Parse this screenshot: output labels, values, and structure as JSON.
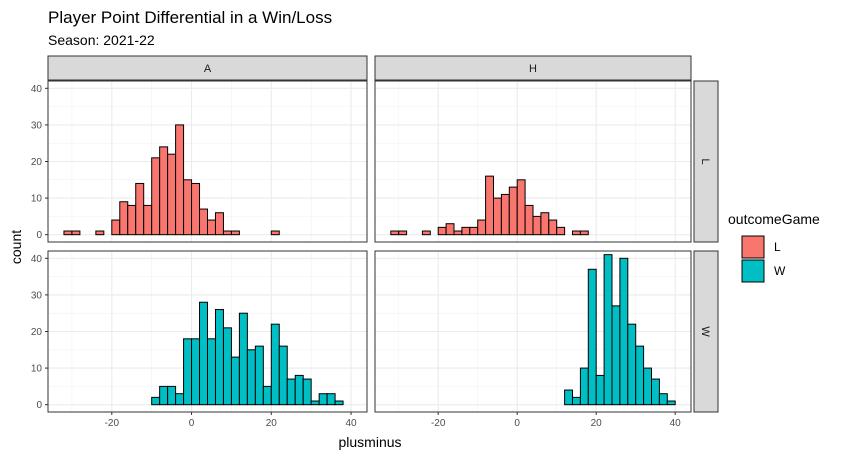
{
  "chart_data": {
    "type": "bar",
    "title": "Player Point Differential in a Win/Loss",
    "subtitle": "Season: 2021-22",
    "xlabel": "plusminus",
    "ylabel": "count",
    "xlim": [
      -36,
      44
    ],
    "ylim": [
      -2,
      42
    ],
    "x_ticks": [
      -20,
      0,
      20,
      40
    ],
    "y_ticks": [
      0,
      10,
      20,
      30,
      40
    ],
    "x_tick_labels": [
      "-20",
      "0",
      "20",
      "40"
    ],
    "y_tick_labels": [
      "0",
      "10",
      "20",
      "30",
      "40"
    ],
    "bin_centers": [
      -33,
      -31,
      -29,
      -27,
      -25,
      -23,
      -21,
      -19,
      -17,
      -15,
      -13,
      -11,
      -9,
      -7,
      -5,
      -3,
      -1,
      1,
      3,
      5,
      7,
      9,
      11,
      13,
      15,
      17,
      19,
      21,
      23,
      25,
      27,
      29,
      31,
      33,
      35,
      37,
      39,
      41
    ],
    "bin_width": 2,
    "grid": true,
    "legend": {
      "title": "outcomeGame",
      "placement": "right",
      "items": [
        {
          "label": "L",
          "color": "#F8766D"
        },
        {
          "label": "W",
          "color": "#00BFC4"
        }
      ]
    },
    "facet_cols": [
      "A",
      "H"
    ],
    "facet_rows": [
      "L",
      "W"
    ],
    "panels": [
      {
        "col": "A",
        "row": "L",
        "color": "#F8766D",
        "values": [
          0,
          1,
          1,
          0,
          0,
          1,
          0,
          4,
          9,
          8,
          14,
          8,
          21,
          24,
          22,
          30,
          15,
          14,
          7,
          4,
          6,
          1,
          1,
          0,
          0,
          0,
          0,
          1,
          0,
          0,
          0,
          0,
          0,
          0,
          0,
          0,
          0,
          0
        ]
      },
      {
        "col": "H",
        "row": "L",
        "color": "#F8766D",
        "values": [
          0,
          1,
          1,
          0,
          0,
          1,
          0,
          2,
          3,
          1,
          2,
          2,
          4,
          16,
          10,
          11,
          13,
          15,
          8,
          5,
          6,
          4,
          2,
          0,
          1,
          1,
          0,
          0,
          0,
          0,
          0,
          0,
          0,
          0,
          0,
          0,
          0,
          0
        ]
      },
      {
        "col": "A",
        "row": "W",
        "color": "#00BFC4",
        "values": [
          0,
          0,
          0,
          0,
          0,
          0,
          0,
          0,
          0,
          0,
          0,
          0,
          2,
          5,
          5,
          3,
          18,
          18,
          28,
          18,
          26,
          21,
          13,
          25,
          15,
          16,
          5,
          22,
          16,
          7,
          8,
          7,
          1,
          3,
          3,
          1,
          0,
          0
        ]
      },
      {
        "col": "H",
        "row": "W",
        "color": "#00BFC4",
        "values": [
          0,
          0,
          0,
          0,
          0,
          0,
          0,
          0,
          0,
          0,
          0,
          0,
          0,
          0,
          0,
          0,
          0,
          0,
          0,
          0,
          0,
          0,
          0,
          4,
          2,
          10,
          37,
          8,
          41,
          27,
          40,
          22,
          16,
          10,
          7,
          3,
          1,
          0
        ]
      }
    ]
  }
}
